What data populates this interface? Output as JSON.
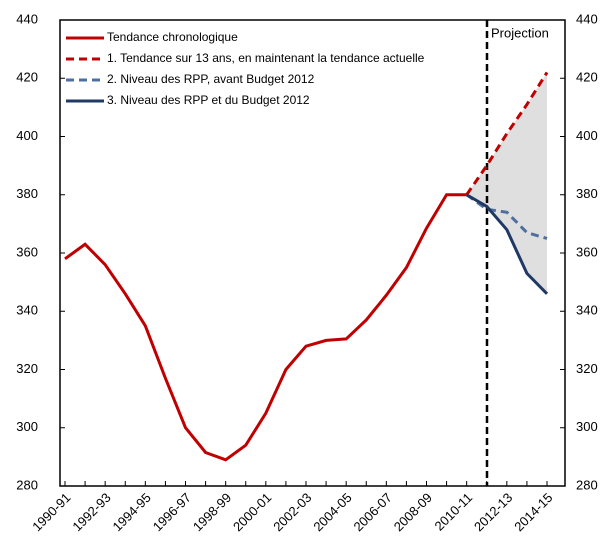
{
  "chart_data": {
    "type": "line",
    "annotation": "Projection",
    "categories": [
      "1990-91",
      null,
      "1992-93",
      null,
      "1994-95",
      null,
      "1996-97",
      null,
      "1998-99",
      null,
      "2000-01",
      null,
      "2002-03",
      null,
      "2004-05",
      null,
      "2006-07",
      null,
      "2008-09",
      null,
      "2010-11",
      null,
      "2012-13",
      null,
      "2014-15"
    ],
    "series": [
      {
        "name": "Tendance chronologique",
        "color": "#c00000",
        "dashed": false,
        "values": [
          358,
          363,
          356,
          346,
          335,
          317,
          300,
          291.5,
          289,
          294,
          305,
          320,
          328,
          330,
          330.5,
          337,
          345.5,
          355,
          368.5,
          380,
          380,
          null,
          null,
          null,
          null
        ]
      },
      {
        "name": "1. Tendance sur 13 ans, en maintenant la tendance actuelle",
        "color": "#c00000",
        "dashed": true,
        "values": [
          null,
          null,
          null,
          null,
          null,
          null,
          null,
          null,
          null,
          null,
          null,
          null,
          null,
          null,
          null,
          null,
          null,
          null,
          null,
          null,
          380,
          390,
          401,
          411,
          422
        ]
      },
      {
        "name": "2. Niveau des RPP, avant Budget 2012",
        "color": "#4f6f9f",
        "dashed": true,
        "values": [
          null,
          null,
          null,
          null,
          null,
          null,
          null,
          null,
          null,
          null,
          null,
          null,
          null,
          null,
          null,
          null,
          null,
          null,
          null,
          null,
          380,
          375,
          374,
          367,
          365
        ]
      },
      {
        "name": "3. Niveau des RPP et du Budget 2012",
        "color": "#1f3864",
        "dashed": false,
        "values": [
          null,
          null,
          null,
          null,
          null,
          null,
          null,
          null,
          null,
          null,
          null,
          null,
          null,
          null,
          null,
          null,
          null,
          null,
          null,
          null,
          380,
          376,
          368,
          353,
          346
        ]
      }
    ],
    "ylim": [
      280,
      440
    ],
    "yticks": [
      280,
      300,
      320,
      340,
      360,
      380,
      400,
      420,
      440
    ],
    "y2lim": [
      280,
      440
    ],
    "y2ticks": [
      280,
      300,
      320,
      340,
      360,
      380,
      400,
      420,
      440
    ]
  }
}
